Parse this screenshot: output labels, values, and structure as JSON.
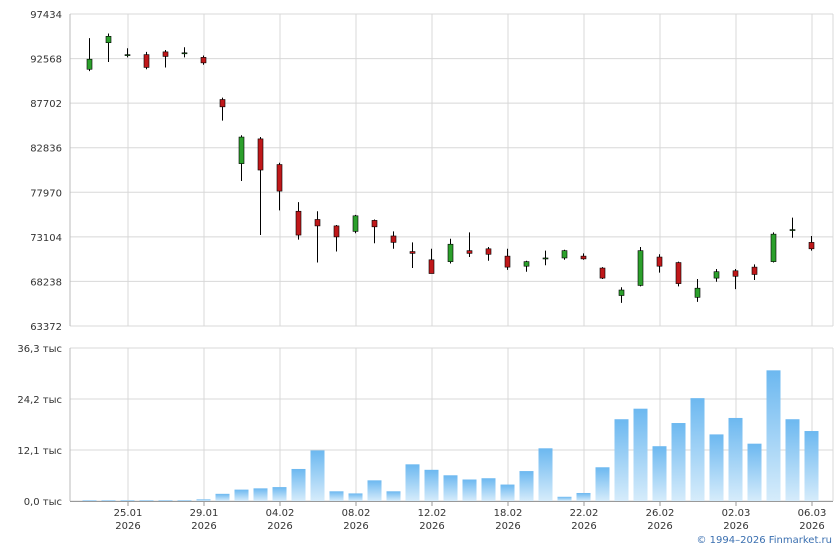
{
  "copyright": "© 1994–2026 Finmarket.ru",
  "chart_data": [
    {
      "type": "candlestick",
      "ylim": [
        63372,
        97434
      ],
      "y_ticks": [
        "97434",
        "92568",
        "87702",
        "82836",
        "77970",
        "73104",
        "68238",
        "63372"
      ],
      "grid": true,
      "colors": {
        "up": "#2ca02c",
        "down": "#c0181a",
        "wick": "#000000",
        "grid": "#d8d8d8"
      },
      "candles": [
        {
          "open": 91400,
          "high": 94800,
          "low": 91200,
          "close": 92500
        },
        {
          "open": 94300,
          "high": 95300,
          "low": 92200,
          "close": 95000
        },
        {
          "open": 92900,
          "high": 93700,
          "low": 92700,
          "close": 93000
        },
        {
          "open": 93000,
          "high": 93300,
          "low": 91400,
          "close": 91600
        },
        {
          "open": 93300,
          "high": 93500,
          "low": 91600,
          "close": 92800
        },
        {
          "open": 93200,
          "high": 93800,
          "low": 92700,
          "close": 93200
        },
        {
          "open": 92700,
          "high": 92900,
          "low": 91900,
          "close": 92100
        },
        {
          "open": 88100,
          "high": 88300,
          "low": 85800,
          "close": 87300
        },
        {
          "open": 81100,
          "high": 84200,
          "low": 79200,
          "close": 84000
        },
        {
          "open": 83800,
          "high": 84000,
          "low": 73300,
          "close": 80400
        },
        {
          "open": 81000,
          "high": 81200,
          "low": 76000,
          "close": 78100
        },
        {
          "open": 75900,
          "high": 76900,
          "low": 72800,
          "close": 73300
        },
        {
          "open": 75000,
          "high": 75900,
          "low": 70300,
          "close": 74300
        },
        {
          "open": 74300,
          "high": 74400,
          "low": 71500,
          "close": 73100
        },
        {
          "open": 73700,
          "high": 75500,
          "low": 73500,
          "close": 75400
        },
        {
          "open": 74900,
          "high": 75000,
          "low": 72400,
          "close": 74200
        },
        {
          "open": 73200,
          "high": 73700,
          "low": 71800,
          "close": 72500
        },
        {
          "open": 71500,
          "high": 72500,
          "low": 69700,
          "close": 71300
        },
        {
          "open": 70600,
          "high": 71800,
          "low": 69200,
          "close": 69100
        },
        {
          "open": 70400,
          "high": 72900,
          "low": 70200,
          "close": 72300
        },
        {
          "open": 71600,
          "high": 73600,
          "low": 70900,
          "close": 71300
        },
        {
          "open": 71800,
          "high": 72000,
          "low": 70500,
          "close": 71200
        },
        {
          "open": 71000,
          "high": 71800,
          "low": 69500,
          "close": 69800
        },
        {
          "open": 69900,
          "high": 70500,
          "low": 69300,
          "close": 70400
        },
        {
          "open": 70800,
          "high": 71600,
          "low": 70000,
          "close": 70800
        },
        {
          "open": 70800,
          "high": 71700,
          "low": 70600,
          "close": 71600
        },
        {
          "open": 71000,
          "high": 71300,
          "low": 70600,
          "close": 70700
        },
        {
          "open": 69700,
          "high": 69800,
          "low": 68500,
          "close": 68600
        },
        {
          "open": 66700,
          "high": 67600,
          "low": 65900,
          "close": 67300
        },
        {
          "open": 67800,
          "high": 72000,
          "low": 67700,
          "close": 71600
        },
        {
          "open": 70900,
          "high": 71200,
          "low": 69200,
          "close": 69900
        },
        {
          "open": 70300,
          "high": 70400,
          "low": 67700,
          "close": 68000
        },
        {
          "open": 66500,
          "high": 68500,
          "low": 66000,
          "close": 67500
        },
        {
          "open": 68600,
          "high": 69600,
          "low": 68200,
          "close": 69300
        },
        {
          "open": 69400,
          "high": 69600,
          "low": 67400,
          "close": 68800
        },
        {
          "open": 69800,
          "high": 70100,
          "low": 68400,
          "close": 69000
        },
        {
          "open": 70400,
          "high": 73600,
          "low": 70300,
          "close": 73400
        },
        {
          "open": 73800,
          "high": 75200,
          "low": 73000,
          "close": 73900
        },
        {
          "open": 72500,
          "high": 73200,
          "low": 71600,
          "close": 71800
        }
      ]
    },
    {
      "type": "bar",
      "ylim": [
        0,
        36.3
      ],
      "y_ticks": [
        "36,3 тыс",
        "24,2 тыс",
        "12,1 тыс",
        "0,0 тыс"
      ],
      "x_ticks": [
        {
          "index": 2,
          "day": "25.01",
          "year": "2026"
        },
        {
          "index": 6,
          "day": "29.01",
          "year": "2026"
        },
        {
          "index": 10,
          "day": "04.02",
          "year": "2026"
        },
        {
          "index": 14,
          "day": "08.02",
          "year": "2026"
        },
        {
          "index": 18,
          "day": "12.02",
          "year": "2026"
        },
        {
          "index": 22,
          "day": "18.02",
          "year": "2026"
        },
        {
          "index": 26,
          "day": "22.02",
          "year": "2026"
        },
        {
          "index": 30,
          "day": "26.02",
          "year": "2026"
        },
        {
          "index": 34,
          "day": "02.03",
          "year": "2026"
        },
        {
          "index": 38,
          "day": "06.03",
          "year": "2026"
        }
      ],
      "grid": true,
      "colors": {
        "bar_top": "#6cb8f0",
        "bar_bottom": "#d6ecfb",
        "grid": "#d8d8d8"
      },
      "values": [
        0.2,
        0.2,
        0.2,
        0.2,
        0.2,
        0.2,
        0.4,
        1.7,
        2.7,
        3.0,
        3.3,
        7.6,
        12.0,
        2.3,
        1.8,
        4.9,
        2.3,
        8.7,
        7.4,
        6.1,
        5.1,
        5.4,
        3.9,
        7.1,
        12.5,
        1.0,
        1.9,
        8.0,
        19.4,
        21.9,
        13.0,
        18.5,
        24.4,
        15.8,
        19.7,
        13.6,
        31.0,
        19.4,
        16.6
      ]
    }
  ]
}
